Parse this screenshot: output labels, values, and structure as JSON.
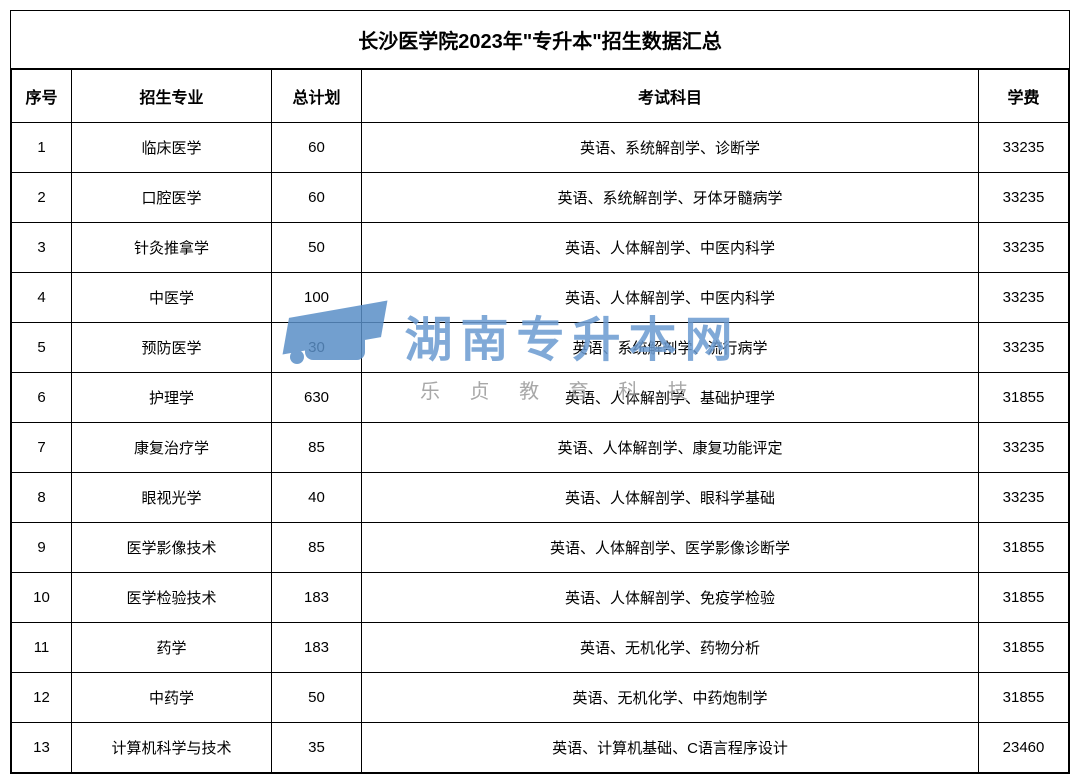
{
  "title": "长沙医学院2023年\"专升本\"招生数据汇总",
  "columns": [
    "序号",
    "招生专业",
    "总计划",
    "考试科目",
    "学费"
  ],
  "rows": [
    [
      "1",
      "临床医学",
      "60",
      "英语、系统解剖学、诊断学",
      "33235"
    ],
    [
      "2",
      "口腔医学",
      "60",
      "英语、系统解剖学、牙体牙髓病学",
      "33235"
    ],
    [
      "3",
      "针灸推拿学",
      "50",
      "英语、人体解剖学、中医内科学",
      "33235"
    ],
    [
      "4",
      "中医学",
      "100",
      "英语、人体解剖学、中医内科学",
      "33235"
    ],
    [
      "5",
      "预防医学",
      "30",
      "英语、系统解剖学、流行病学",
      "33235"
    ],
    [
      "6",
      "护理学",
      "630",
      "英语、人体解剖学、基础护理学",
      "31855"
    ],
    [
      "7",
      "康复治疗学",
      "85",
      "英语、人体解剖学、康复功能评定",
      "33235"
    ],
    [
      "8",
      "眼视光学",
      "40",
      "英语、人体解剖学、眼科学基础",
      "33235"
    ],
    [
      "9",
      "医学影像技术",
      "85",
      "英语、人体解剖学、医学影像诊断学",
      "31855"
    ],
    [
      "10",
      "医学检验技术",
      "183",
      "英语、人体解剖学、免疫学检验",
      "31855"
    ],
    [
      "11",
      "药学",
      "183",
      "英语、无机化学、药物分析",
      "31855"
    ],
    [
      "12",
      "中药学",
      "50",
      "英语、无机化学、中药炮制学",
      "31855"
    ],
    [
      "13",
      "计算机科学与技术",
      "35",
      "英语、计算机基础、C语言程序设计",
      "23460"
    ]
  ],
  "watermark": {
    "main_text": "湖南专升本网",
    "sub_text": "乐 贞 教 育 科 技",
    "main_color": "#6b9bd1",
    "sub_color": "#999999",
    "logo_color": "#5a8fc7"
  },
  "styling": {
    "border_color": "#000000",
    "background_color": "#ffffff",
    "title_fontsize": 20,
    "header_fontsize": 16,
    "cell_fontsize": 15,
    "col_widths": {
      "seq": 60,
      "major": 200,
      "plan": 90,
      "fee": 90
    }
  }
}
